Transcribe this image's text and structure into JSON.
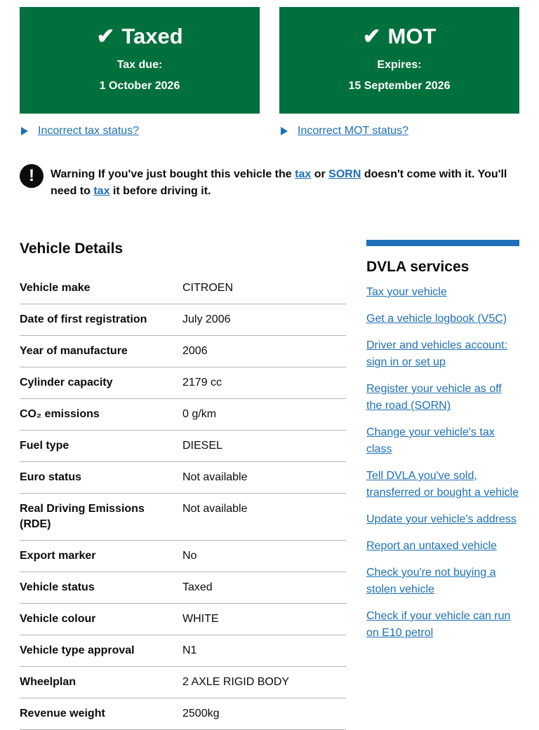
{
  "tax_panel": {
    "title": "Taxed",
    "label": "Tax due:",
    "date": "1 October 2026"
  },
  "mot_panel": {
    "title": "MOT",
    "label": "Expires:",
    "date": "15 September 2026"
  },
  "tax_details_link": "Incorrect tax status?",
  "mot_details_link": "Incorrect MOT status?",
  "warning": {
    "prefix": "Warning If you've just bought this vehicle the",
    "tax": "tax",
    "or": "or",
    "sorn": "SORN",
    "mid": "doesn't come with it. You'll need to",
    "tax2": "tax",
    "end": "it before driving it."
  },
  "details": {
    "heading": "Vehicle Details",
    "rows": [
      {
        "k": "Vehicle make",
        "v": "CITROEN"
      },
      {
        "k": "Date of first registration",
        "v": "July 2006"
      },
      {
        "k": "Year of manufacture",
        "v": "2006"
      },
      {
        "k": "Cylinder capacity",
        "v": "2179 cc"
      },
      {
        "k": "CO₂ emissions",
        "v": "0 g/km"
      },
      {
        "k": "Fuel type",
        "v": "DIESEL"
      },
      {
        "k": "Euro status",
        "v": "Not available"
      },
      {
        "k": "Real Driving Emissions (RDE)",
        "v": "Not available"
      },
      {
        "k": "Export marker",
        "v": "No"
      },
      {
        "k": "Vehicle status",
        "v": "Taxed"
      },
      {
        "k": "Vehicle colour",
        "v": "WHITE"
      },
      {
        "k": "Vehicle type approval",
        "v": "N1"
      },
      {
        "k": "Wheelplan",
        "v": "2 AXLE RIGID BODY"
      },
      {
        "k": "Revenue weight",
        "v": "2500kg"
      }
    ]
  },
  "services": {
    "heading": "DVLA services",
    "links": [
      "Tax your vehicle",
      "Get a vehicle logbook (V5C)",
      "Driver and vehicles account: sign in or set up",
      "Register your vehicle as off the road (SORN)",
      "Change your vehicle's tax class",
      "Tell DVLA you've sold, transferred or bought a vehicle",
      "Update your vehicle's address",
      "Report an untaxed vehicle",
      "Check you're not buying a stolen vehicle",
      "Check if your vehicle can run on E10 petrol"
    ]
  }
}
